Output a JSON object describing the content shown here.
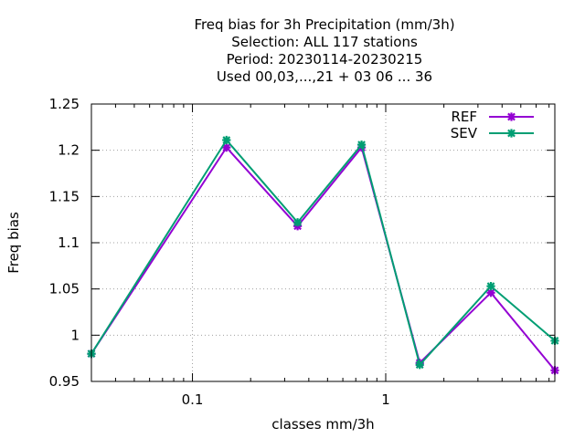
{
  "chart_data": {
    "type": "line",
    "title_lines": [
      "Freq bias  for 3h Precipitation (mm/3h)",
      "Selection: ALL    117 stations",
      "Period: 20230114-20230215",
      "Used  00,03,...,21  + 03 06 ... 36"
    ],
    "xlabel": "classes mm/3h",
    "ylabel": "Freq bias",
    "x_scale": "log",
    "xlim": [
      0.03,
      7.5
    ],
    "ylim": [
      0.95,
      1.25
    ],
    "x_tick_labels": [
      {
        "value": 0.1,
        "label": "0.1"
      },
      {
        "value": 1,
        "label": "1"
      }
    ],
    "y_ticks": [
      {
        "value": 0.95,
        "label": "0.95"
      },
      {
        "value": 1.0,
        "label": "1"
      },
      {
        "value": 1.05,
        "label": "1.05"
      },
      {
        "value": 1.1,
        "label": "1.1"
      },
      {
        "value": 1.15,
        "label": "1.15"
      },
      {
        "value": 1.2,
        "label": "1.2"
      },
      {
        "value": 1.25,
        "label": "1.25"
      }
    ],
    "grid": true,
    "legend_position": "top-right",
    "series": [
      {
        "name": "REF",
        "color": "#9400d3",
        "x": [
          0.03,
          0.15,
          0.35,
          0.75,
          1.5,
          3.5,
          7.5
        ],
        "y": [
          0.98,
          1.203,
          1.118,
          1.203,
          0.97,
          1.046,
          0.962
        ]
      },
      {
        "name": "SEV",
        "color": "#009e73",
        "x": [
          0.03,
          0.15,
          0.35,
          0.75,
          1.5,
          3.5,
          7.5
        ],
        "y": [
          0.98,
          1.211,
          1.122,
          1.206,
          0.968,
          1.053,
          0.994
        ]
      }
    ]
  }
}
